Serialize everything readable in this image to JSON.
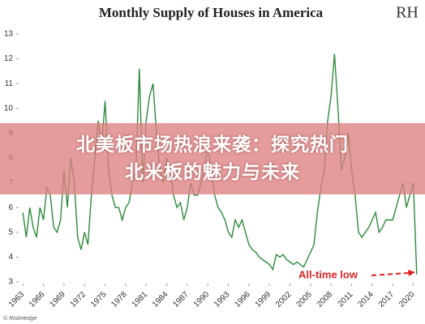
{
  "chart_data": {
    "type": "line",
    "title": "Monthly Supply of Houses in America",
    "logo": "RH",
    "source": "© RiskHedge",
    "annotation": "All-time low",
    "color": "#2f8a3c",
    "x": [
      1963,
      1963.5,
      1964,
      1964.5,
      1965,
      1965.5,
      1966,
      1966.5,
      1967,
      1967.5,
      1968,
      1968.5,
      1969,
      1969.5,
      1970,
      1970.5,
      1971,
      1971.5,
      1972,
      1972.5,
      1973,
      1973.5,
      1974,
      1974.5,
      1975,
      1975.5,
      1976,
      1976.5,
      1977,
      1977.5,
      1978,
      1978.5,
      1979,
      1979.5,
      1980,
      1980.5,
      1981,
      1981.5,
      1982,
      1982.5,
      1983,
      1983.5,
      1984,
      1984.5,
      1985,
      1985.5,
      1986,
      1986.5,
      1987,
      1987.5,
      1988,
      1988.5,
      1989,
      1989.5,
      1990,
      1990.5,
      1991,
      1991.5,
      1992,
      1992.5,
      1993,
      1993.5,
      1994,
      1994.5,
      1995,
      1995.5,
      1996,
      1996.5,
      1997,
      1997.5,
      1998,
      1998.5,
      1999,
      1999.5,
      2000,
      2000.5,
      2001,
      2001.5,
      2002,
      2002.5,
      2003,
      2003.5,
      2004,
      2004.5,
      2005,
      2005.5,
      2006,
      2006.5,
      2007,
      2007.5,
      2008,
      2008.5,
      2009,
      2009.5,
      2010,
      2010.5,
      2011,
      2011.5,
      2012,
      2012.5,
      2013,
      2013.5,
      2014,
      2014.5,
      2015,
      2015.5,
      2016,
      2016.5,
      2017,
      2017.5,
      2018,
      2018.5,
      2019,
      2019.5,
      2020,
      2020.5
    ],
    "values": [
      5.8,
      4.8,
      6.0,
      5.2,
      4.8,
      6.0,
      5.5,
      6.8,
      6.5,
      5.2,
      5.0,
      5.5,
      7.5,
      6.0,
      8.0,
      7.0,
      4.8,
      4.3,
      5.0,
      4.5,
      6.5,
      8.0,
      9.5,
      8.5,
      10.3,
      7.5,
      6.5,
      6.0,
      6.0,
      5.5,
      6.0,
      6.2,
      7.0,
      7.5,
      11.6,
      7.0,
      9.5,
      10.5,
      11.0,
      9.0,
      7.5,
      7.0,
      8.0,
      7.5,
      6.5,
      6.0,
      6.2,
      5.5,
      6.0,
      7.0,
      6.5,
      6.5,
      7.0,
      7.5,
      8.5,
      7.5,
      6.5,
      6.0,
      5.8,
      5.5,
      5.0,
      4.8,
      5.5,
      5.2,
      5.5,
      5.0,
      4.5,
      4.3,
      4.2,
      4.0,
      3.9,
      3.8,
      3.7,
      3.5,
      4.1,
      4.0,
      4.1,
      3.9,
      3.8,
      3.7,
      3.8,
      3.7,
      3.6,
      3.9,
      4.2,
      4.5,
      5.8,
      6.8,
      7.5,
      9.5,
      10.5,
      12.2,
      10.0,
      7.5,
      8.0,
      9.0,
      7.5,
      6.5,
      5.0,
      4.8,
      5.0,
      5.2,
      5.5,
      5.8,
      5.0,
      5.2,
      5.5,
      5.5,
      5.5,
      6.0,
      6.5,
      7.0,
      6.0,
      6.5,
      7.0,
      3.3
    ],
    "xlim": [
      1962.5,
      2021
    ],
    "xticks": [
      1963,
      1966,
      1969,
      1972,
      1975,
      1978,
      1981,
      1984,
      1987,
      1990,
      1993,
      1996,
      1999,
      2002,
      2005,
      2008,
      2011,
      2014,
      2017,
      2020
    ],
    "ylim": [
      3,
      13
    ],
    "yticks": [
      3,
      4,
      5,
      6,
      7,
      8,
      9,
      10,
      11,
      12,
      13
    ]
  },
  "banner": {
    "line1": "北美板市场热浪来袭：探究热门",
    "line2": "北米板的魅力与未来"
  }
}
